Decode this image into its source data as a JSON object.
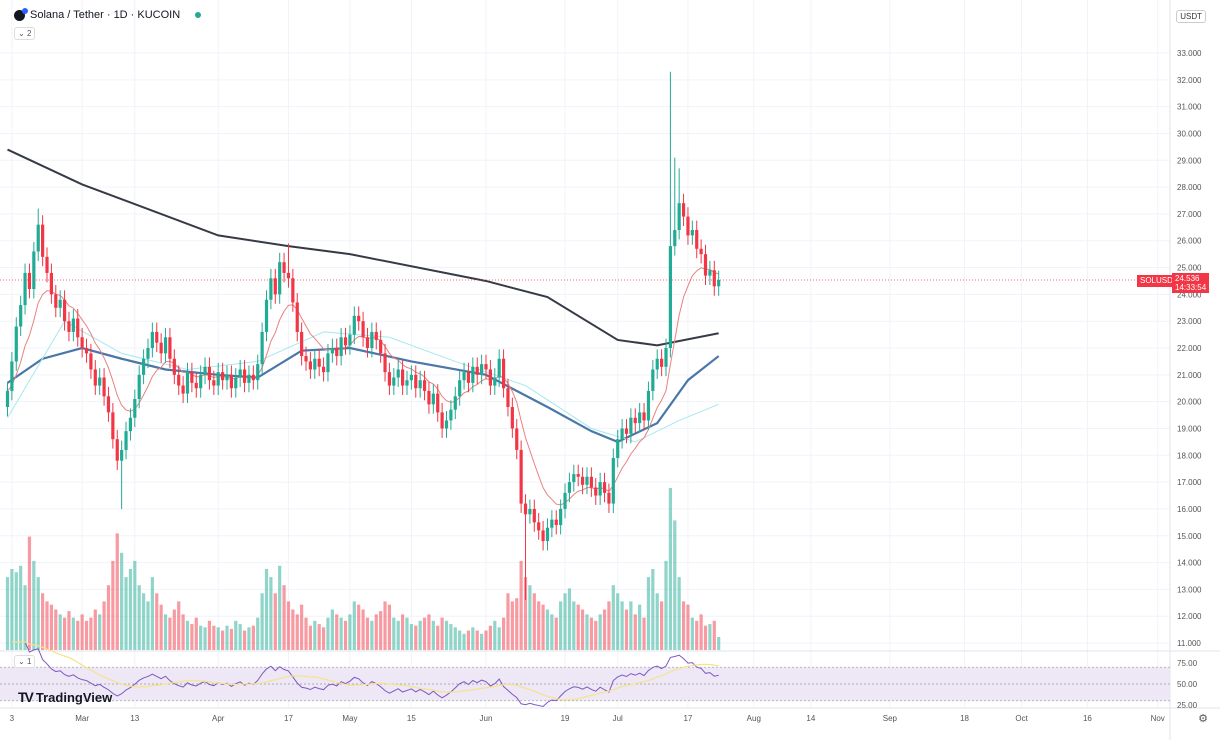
{
  "header": {
    "title": "Solana / Tether · 1D · KUCOIN",
    "indicator_count": "2",
    "rsi_pane_count": "1",
    "currency": "USDT"
  },
  "branding": "TradingView",
  "price_label": {
    "symbol": "SOLUSDT",
    "price": "24.536",
    "countdown": "14:33:54"
  },
  "colors": {
    "up": "#22ab94",
    "down": "#f23645",
    "ma_long": "#363a45",
    "ma_mid": "#4a77a8",
    "ma_short": "#a6e8f0",
    "ema": "#e8827f",
    "rsi": "#7e57c2",
    "rsi_ma": "#f5e38c",
    "rsi_band": "#ede7f6"
  },
  "chart_data": {
    "type": "candlestick",
    "symbol": "SOLUSDT",
    "start_date": "2023-02-12",
    "interval": "1D",
    "ylim": [
      11,
      33.5
    ],
    "y_ticks": [
      "11.000",
      "12.000",
      "13.000",
      "14.000",
      "15.000",
      "16.000",
      "17.000",
      "18.000",
      "19.000",
      "20.000",
      "21.000",
      "22.000",
      "23.000",
      "24.000",
      "25.000",
      "26.000",
      "27.000",
      "28.000",
      "29.000",
      "30.000",
      "31.000",
      "32.000",
      "33.000"
    ],
    "x_ticks": [
      {
        "label": "3",
        "date": "2023-02-13"
      },
      {
        "label": "Mar",
        "date": "2023-03-01"
      },
      {
        "label": "13",
        "date": "2023-03-13"
      },
      {
        "label": "Apr",
        "date": "2023-04-01"
      },
      {
        "label": "17",
        "date": "2023-04-17"
      },
      {
        "label": "May",
        "date": "2023-05-01"
      },
      {
        "label": "15",
        "date": "2023-05-15"
      },
      {
        "label": "Jun",
        "date": "2023-06-01"
      },
      {
        "label": "19",
        "date": "2023-06-19"
      },
      {
        "label": "Jul",
        "date": "2023-07-01"
      },
      {
        "label": "17",
        "date": "2023-07-17"
      },
      {
        "label": "Aug",
        "date": "2023-08-01"
      },
      {
        "label": "14",
        "date": "2023-08-14"
      },
      {
        "label": "Sep",
        "date": "2023-09-01"
      },
      {
        "label": "18",
        "date": "2023-09-18"
      },
      {
        "label": "Oct",
        "date": "2023-10-01"
      },
      {
        "label": "16",
        "date": "2023-10-16"
      },
      {
        "label": "Nov",
        "date": "2023-11-01"
      }
    ],
    "closes": [
      20.4,
      21.5,
      22.8,
      23.6,
      24.8,
      24.2,
      25.6,
      26.6,
      25.4,
      24.8,
      24.0,
      23.5,
      23.8,
      23.0,
      22.6,
      23.1,
      22.4,
      22.0,
      21.8,
      21.2,
      20.6,
      20.9,
      20.2,
      19.6,
      18.6,
      17.8,
      18.2,
      18.9,
      19.4,
      20.1,
      21.0,
      21.6,
      22.0,
      22.6,
      22.2,
      21.8,
      22.4,
      21.6,
      21.0,
      20.6,
      20.3,
      21.1,
      20.7,
      20.5,
      21.0,
      21.3,
      20.8,
      20.6,
      21.1,
      20.8,
      21.0,
      20.5,
      20.9,
      21.2,
      20.7,
      21.0,
      20.8,
      21.4,
      22.6,
      23.8,
      24.6,
      24.0,
      25.2,
      24.8,
      24.6,
      23.7,
      22.6,
      21.7,
      21.5,
      21.2,
      21.6,
      21.3,
      21.1,
      21.8,
      22.0,
      21.7,
      22.4,
      22.1,
      22.5,
      23.2,
      23.0,
      22.4,
      22.0,
      22.6,
      22.3,
      21.8,
      21.1,
      20.6,
      20.9,
      21.2,
      20.6,
      20.8,
      21.0,
      20.5,
      20.8,
      20.4,
      19.9,
      20.3,
      19.6,
      19.0,
      19.3,
      19.7,
      20.2,
      20.8,
      21.1,
      20.7,
      21.3,
      21.0,
      21.4,
      21.2,
      20.6,
      20.9,
      21.6,
      20.5,
      19.8,
      19.0,
      18.2,
      16.2,
      15.8,
      16.0,
      15.5,
      15.2,
      14.8,
      15.3,
      15.6,
      15.4,
      16.0,
      16.6,
      17.0,
      17.3,
      17.2,
      16.9,
      17.2,
      16.8,
      16.5,
      17.0,
      16.6,
      16.2,
      17.9,
      18.6,
      19.0,
      18.8,
      19.4,
      19.2,
      19.6,
      19.3,
      20.4,
      21.2,
      21.6,
      21.3,
      22.0,
      25.8,
      26.4,
      27.4,
      26.9,
      26.2,
      26.4,
      25.7,
      25.5,
      24.7,
      24.9,
      24.3,
      24.536
    ],
    "wick_extremes": [
      {
        "date": "2023-02-19",
        "high": 27.2
      },
      {
        "date": "2023-03-10",
        "low": 16.0
      },
      {
        "date": "2023-04-17",
        "high": 25.9
      },
      {
        "date": "2023-06-10",
        "low": 12.6
      },
      {
        "date": "2023-07-13",
        "high": 32.3
      },
      {
        "date": "2023-07-14",
        "high": 29.1
      },
      {
        "date": "2023-07-15",
        "high": 28.7
      }
    ],
    "volumes": [
      45,
      50,
      48,
      52,
      40,
      70,
      55,
      45,
      35,
      30,
      28,
      25,
      22,
      20,
      24,
      20,
      18,
      22,
      18,
      20,
      25,
      22,
      30,
      40,
      55,
      72,
      60,
      45,
      50,
      55,
      40,
      35,
      30,
      45,
      35,
      28,
      22,
      20,
      25,
      30,
      22,
      18,
      16,
      20,
      15,
      14,
      18,
      15,
      14,
      12,
      15,
      13,
      18,
      16,
      12,
      14,
      15,
      20,
      35,
      50,
      45,
      35,
      52,
      40,
      30,
      25,
      22,
      28,
      20,
      15,
      18,
      16,
      14,
      20,
      25,
      22,
      20,
      18,
      22,
      30,
      28,
      25,
      20,
      18,
      22,
      24,
      30,
      28,
      20,
      18,
      22,
      20,
      16,
      15,
      18,
      20,
      22,
      18,
      15,
      20,
      18,
      16,
      14,
      12,
      10,
      12,
      14,
      12,
      10,
      12,
      15,
      18,
      14,
      20,
      35,
      30,
      32,
      55,
      45,
      40,
      35,
      30,
      28,
      25,
      22,
      20,
      30,
      35,
      38,
      30,
      28,
      25,
      22,
      20,
      18,
      22,
      25,
      30,
      40,
      35,
      30,
      25,
      30,
      22,
      28,
      20,
      45,
      50,
      35,
      30,
      55,
      100,
      80,
      45,
      30,
      28,
      20,
      18,
      22,
      15,
      16,
      18,
      8
    ],
    "ma_lines": [
      {
        "key": "ma_long",
        "points": [
          [
            "2023-02-12",
            29.4
          ],
          [
            "2023-03-01",
            28.1
          ],
          [
            "2023-04-01",
            26.2
          ],
          [
            "2023-04-17",
            25.8
          ],
          [
            "2023-05-01",
            25.5
          ],
          [
            "2023-06-01",
            24.5
          ],
          [
            "2023-06-15",
            23.9
          ],
          [
            "2023-07-01",
            22.3
          ],
          [
            "2023-07-10",
            22.1
          ],
          [
            "2023-07-24",
            22.55
          ]
        ]
      },
      {
        "key": "ma_mid",
        "points": [
          [
            "2023-02-12",
            20.7
          ],
          [
            "2023-02-20",
            21.6
          ],
          [
            "2023-03-01",
            22.0
          ],
          [
            "2023-03-10",
            21.6
          ],
          [
            "2023-03-20",
            21.2
          ],
          [
            "2023-04-01",
            21.0
          ],
          [
            "2023-04-10",
            20.9
          ],
          [
            "2023-04-20",
            21.9
          ],
          [
            "2023-05-01",
            22.0
          ],
          [
            "2023-05-15",
            21.5
          ],
          [
            "2023-06-01",
            21.0
          ],
          [
            "2023-06-15",
            19.8
          ],
          [
            "2023-06-25",
            18.9
          ],
          [
            "2023-07-01",
            18.5
          ],
          [
            "2023-07-10",
            19.2
          ],
          [
            "2023-07-17",
            20.8
          ],
          [
            "2023-07-24",
            21.7
          ]
        ]
      },
      {
        "key": "ma_short",
        "points": [
          [
            "2023-02-12",
            19.4
          ],
          [
            "2023-02-25",
            23.0
          ],
          [
            "2023-03-10",
            21.8
          ],
          [
            "2023-03-25",
            21.2
          ],
          [
            "2023-04-10",
            21.5
          ],
          [
            "2023-04-25",
            22.6
          ],
          [
            "2023-05-10",
            22.4
          ],
          [
            "2023-05-25",
            21.5
          ],
          [
            "2023-06-10",
            20.6
          ],
          [
            "2023-06-25",
            19.0
          ],
          [
            "2023-07-05",
            18.5
          ],
          [
            "2023-07-15",
            19.3
          ],
          [
            "2023-07-24",
            19.9
          ]
        ]
      }
    ],
    "rsi": {
      "ticks": [
        "75.00",
        "50.00",
        "25.00"
      ],
      "levels": [
        70,
        50,
        30
      ],
      "ylim": [
        20,
        85
      ]
    }
  }
}
